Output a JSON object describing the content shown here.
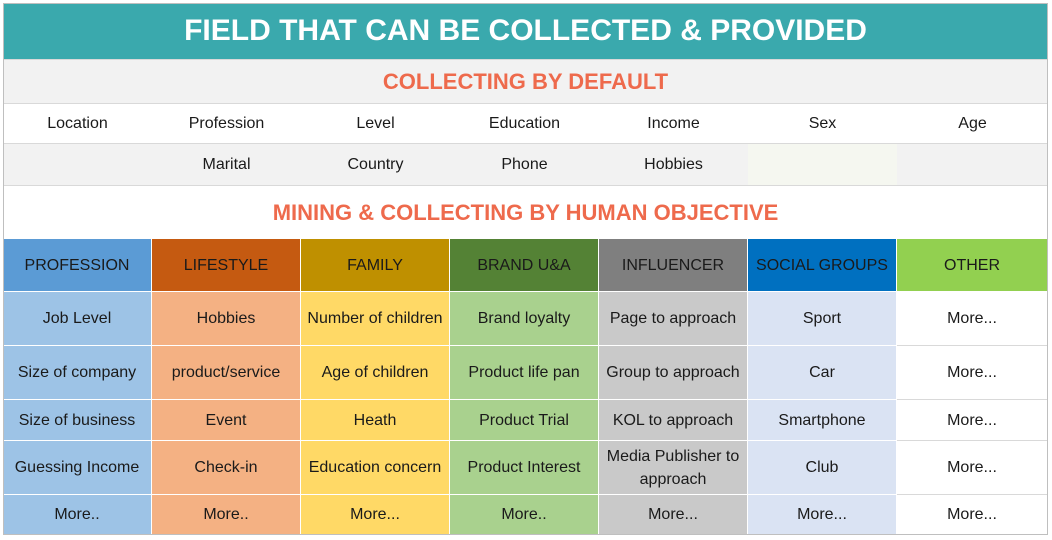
{
  "title": "FIELD THAT CAN BE COLLECTED & PROVIDED",
  "default_section": {
    "heading": "COLLECTING BY DEFAULT",
    "row1": [
      "Location",
      "Profession",
      "Level",
      "Education",
      "Income",
      "Sex",
      "Age"
    ],
    "row2": [
      "",
      "Marital",
      "Country",
      "Phone",
      "Hobbies",
      "",
      ""
    ]
  },
  "mining_section": {
    "heading": "MINING & COLLECTING BY HUMAN OBJECTIVE",
    "columns": [
      {
        "header": "PROFESSION",
        "header_color": "#5b9bd5",
        "cell_color": "#9dc3e6",
        "items": [
          "Job Level",
          "Size of company",
          "Size of business",
          "Guessing Income",
          "More.."
        ]
      },
      {
        "header": "LIFESTYLE",
        "header_color": "#c55a11",
        "cell_color": "#f4b183",
        "items": [
          "Hobbies",
          "product/service",
          "Event",
          "Check-in",
          "More.."
        ]
      },
      {
        "header": "FAMILY",
        "header_color": "#bf9000",
        "cell_color": "#ffd966",
        "items": [
          "Number of children",
          "Age of children",
          "Heath",
          "Education concern",
          "More..."
        ]
      },
      {
        "header": "BRAND U&A",
        "header_color": "#548235",
        "cell_color": "#a9d18e",
        "items": [
          "Brand loyalty",
          "Product life pan",
          "Product Trial",
          "Product Interest",
          "More.."
        ]
      },
      {
        "header": "INFLUENCER",
        "header_color": "#7f7f7f",
        "cell_color": "#c9c9c9",
        "items": [
          "Page to approach",
          "Group to approach",
          "KOL to approach",
          "Media Publisher to approach",
          "More..."
        ]
      },
      {
        "header": "SOCIAL GROUPS",
        "header_color": "#0070c0",
        "cell_color": "#dae3f3",
        "items": [
          "Sport",
          "Car",
          "Smartphone",
          "Club",
          "More..."
        ]
      },
      {
        "header": "OTHER",
        "header_color": "#92d050",
        "cell_color": "#ffffff",
        "items": [
          "More...",
          "More...",
          "More...",
          "More...",
          "More..."
        ]
      }
    ]
  }
}
